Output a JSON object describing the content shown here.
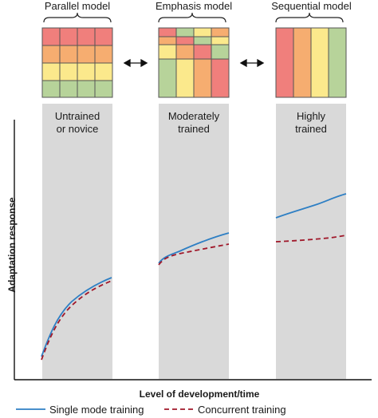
{
  "models": [
    {
      "title": "Parallel model"
    },
    {
      "title": "Emphasis model"
    },
    {
      "title": "Sequential model"
    }
  ],
  "stages": [
    {
      "label_line1": "Untrained",
      "label_line2": "or novice"
    },
    {
      "label_line1": "Moderately",
      "label_line2": "trained"
    },
    {
      "label_line1": "Highly",
      "label_line2": "trained"
    }
  ],
  "axes": {
    "xlabel": "Level of development/time",
    "ylabel": "Adaptation response"
  },
  "legend": {
    "single": "Single mode training",
    "concurrent": "Concurrent training"
  },
  "colors": {
    "red": "#f07f7c",
    "orange": "#f6ad70",
    "yellow": "#fbe98c",
    "green": "#b7d39a",
    "band": "#d9d9d9",
    "single_line": "#2e7fc4",
    "concurrent_line": "#a0182a"
  }
}
